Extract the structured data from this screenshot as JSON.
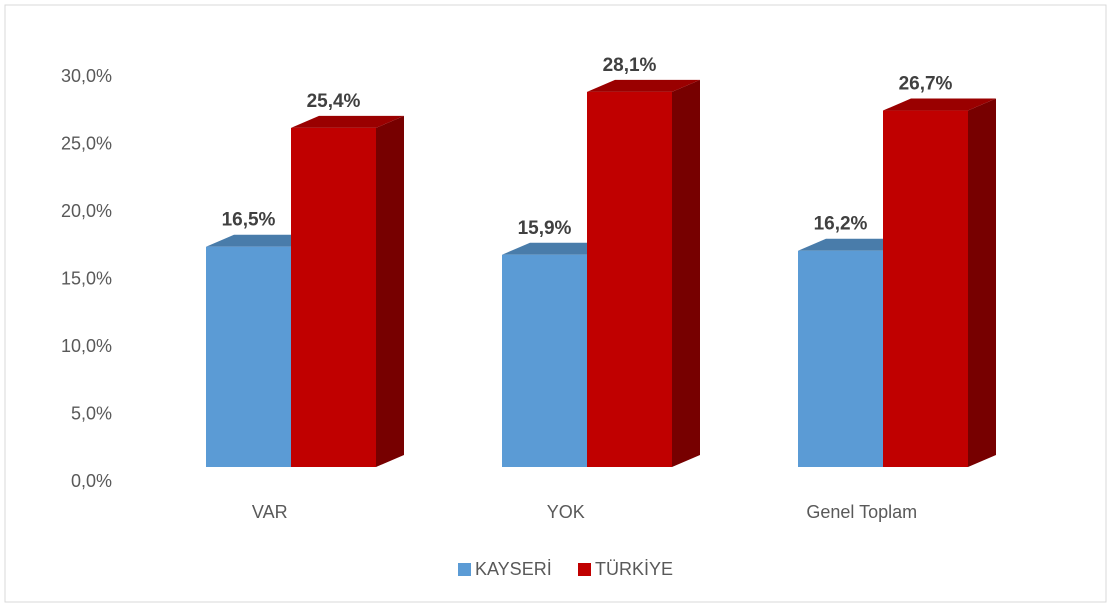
{
  "chart_data": {
    "type": "bar3d",
    "categories": [
      "VAR",
      "YOK",
      "Genel Toplam"
    ],
    "series": [
      {
        "name": "KAYSERİ",
        "color": "#5b9bd5",
        "values": [
          16.5,
          15.9,
          16.2
        ],
        "value_labels": [
          "16,5%",
          "15,9%",
          "16,2%"
        ]
      },
      {
        "name": "TÜRKİYE",
        "color": "#c00000",
        "values": [
          25.4,
          28.1,
          26.7
        ],
        "value_labels": [
          "25,4%",
          "28,1%",
          "26,7%"
        ]
      }
    ],
    "ylim": [
      0,
      30
    ],
    "yticks": [
      {
        "value": 0,
        "label": "0,0%"
      },
      {
        "value": 5,
        "label": "5,0%"
      },
      {
        "value": 10,
        "label": "10,0%"
      },
      {
        "value": 15,
        "label": "15,0%"
      },
      {
        "value": 20,
        "label": "20,0%"
      },
      {
        "value": 25,
        "label": "25,0%"
      },
      {
        "value": 30,
        "label": "30,0%"
      }
    ],
    "legend": "bottom"
  }
}
